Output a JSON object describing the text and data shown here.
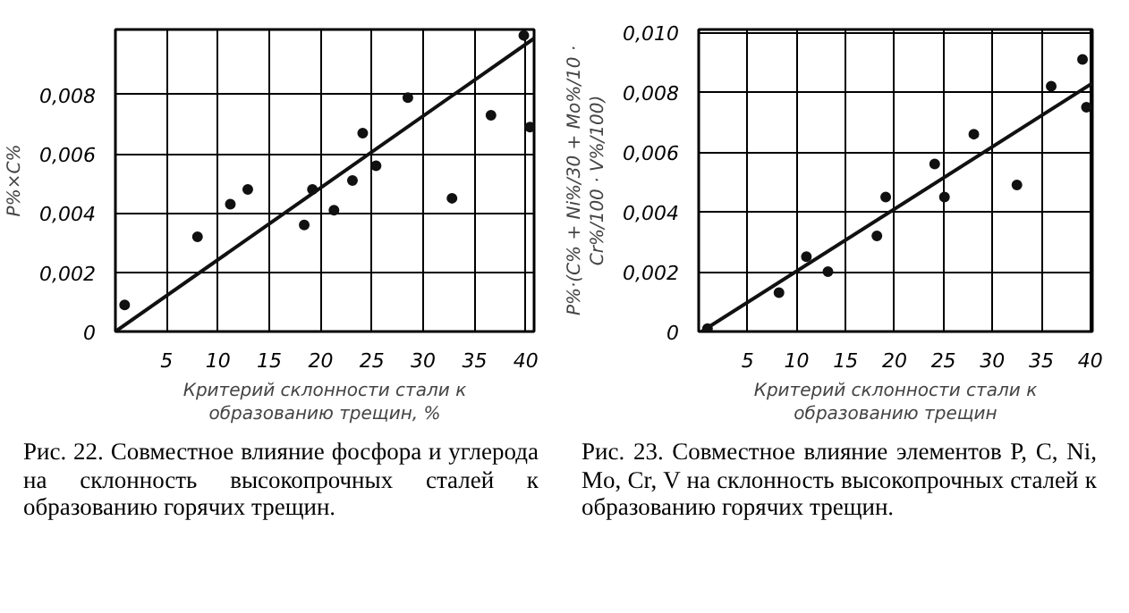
{
  "chart_data": [
    {
      "type": "scatter",
      "ylabel": "P%×C%",
      "xlabel": "Критерий склонности стали к образованию трещин, %",
      "annotations": [
        "Рис. 22. Совместное влияние фосфора и углерода на склонность высокопрочных сталей к образованию горячих трещин."
      ],
      "xlim": [
        0,
        40.8
      ],
      "ylim": [
        0,
        0.0102
      ],
      "xticks": [
        5,
        10,
        15,
        20,
        25,
        30,
        35,
        40
      ],
      "yticks": [
        {
          "value": 0,
          "label": "0"
        },
        {
          "value": 0.002,
          "label": "0,002"
        },
        {
          "value": 0.004,
          "label": "0,004"
        },
        {
          "value": 0.006,
          "label": "0,006"
        },
        {
          "value": 0.008,
          "label": "0,008"
        }
      ],
      "grid": true,
      "series": [
        {
          "type": "scatter",
          "marker": "circle",
          "color": "#111111",
          "x": [
            0.9,
            8.0,
            11.2,
            12.9,
            18.4,
            19.2,
            21.3,
            23.1,
            24.1,
            25.4,
            28.5,
            32.8,
            36.6,
            39.8,
            40.4
          ],
          "values": [
            0.0009,
            0.0032,
            0.0043,
            0.0048,
            0.0036,
            0.0048,
            0.0041,
            0.0051,
            0.0067,
            0.0056,
            0.0079,
            0.0045,
            0.0073,
            0.01,
            0.0069
          ]
        },
        {
          "type": "line",
          "color": "#111111",
          "x": [
            0,
            40.8
          ],
          "values": [
            0,
            0.0099
          ]
        }
      ]
    },
    {
      "type": "scatter",
      "ylabel": "P%·(C% + Ni%/30 + Mo%/10 · Cr%/100 · V%/100)",
      "xlabel": "Критерий склонности стали к образованию трещин",
      "annotations": [
        "Рис. 23. Совместное влияние элементов P, C, Ni, Mo, Cr, V на склонность высокопрочных сталей к образованию горячих трещин."
      ],
      "xlim": [
        0,
        40.2
      ],
      "ylim": [
        0,
        0.0101
      ],
      "xticks": [
        5,
        10,
        15,
        20,
        25,
        30,
        35,
        40
      ],
      "yticks": [
        {
          "value": 0,
          "label": "0"
        },
        {
          "value": 0.002,
          "label": "0,002"
        },
        {
          "value": 0.004,
          "label": "0,004"
        },
        {
          "value": 0.006,
          "label": "0,006"
        },
        {
          "value": 0.008,
          "label": "0,008"
        },
        {
          "value": 0.01,
          "label": "0,010"
        }
      ],
      "grid": true,
      "series": [
        {
          "type": "scatter",
          "marker": "circle",
          "color": "#111111",
          "x": [
            0.9,
            8.2,
            11.0,
            13.2,
            18.2,
            19.1,
            24.1,
            25.1,
            28.1,
            32.5,
            36.0,
            39.2,
            39.6
          ],
          "values": [
            0.0001,
            0.0013,
            0.0025,
            0.002,
            0.0032,
            0.0045,
            0.0056,
            0.0045,
            0.0066,
            0.0049,
            0.0082,
            0.0091,
            0.0075
          ]
        },
        {
          "type": "line",
          "color": "#111111",
          "x": [
            0.3,
            40.2
          ],
          "values": [
            0,
            0.0083
          ]
        }
      ]
    }
  ]
}
